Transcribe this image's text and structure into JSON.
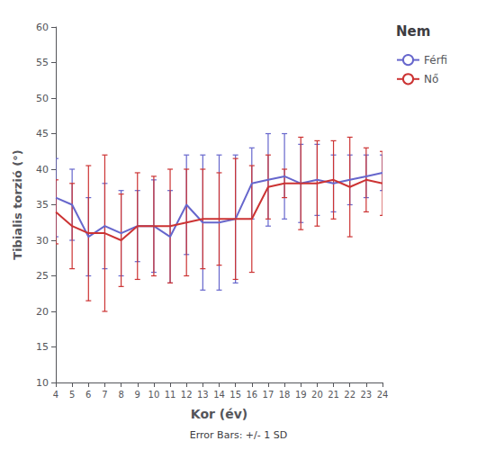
{
  "chart_data": {
    "type": "line",
    "xlabel": "Kor (év)",
    "ylabel": "Tibialis torzió (°)",
    "legend_title": "Nem",
    "annotations": [
      "Error Bars: +/- 1 SD"
    ],
    "x": [
      4,
      5,
      6,
      7,
      8,
      9,
      10,
      11,
      12,
      13,
      14,
      15,
      16,
      17,
      18,
      19,
      20,
      21,
      22,
      23,
      24
    ],
    "series": [
      {
        "name": "Férfi",
        "color": "#6666cc",
        "values": [
          36,
          35,
          30.5,
          32,
          31,
          32,
          32,
          30.5,
          35,
          32.5,
          32.5,
          33,
          38,
          38.5,
          39,
          38,
          38.5,
          38,
          38.5,
          39,
          39.5
        ],
        "error": [
          5.5,
          5,
          5.5,
          6,
          6,
          5,
          6.5,
          6.5,
          7,
          9.5,
          9.5,
          9,
          5,
          6.5,
          6,
          5.5,
          5,
          4,
          3.5,
          3,
          2.5
        ]
      },
      {
        "name": "Nő",
        "color": "#cc3333",
        "values": [
          34,
          32,
          31,
          31,
          30,
          32,
          32,
          32,
          32.5,
          33,
          33,
          33,
          33,
          37.5,
          38,
          38,
          38,
          38.5,
          37.5,
          38.5,
          38
        ],
        "error": [
          4.5,
          6,
          9.5,
          11,
          6.5,
          7.5,
          7,
          8,
          7.5,
          7,
          6.5,
          8.5,
          7.5,
          4.5,
          2,
          6.5,
          6,
          5.5,
          7,
          4.5,
          4.5
        ]
      }
    ],
    "xlim": [
      4,
      24
    ],
    "xticks": [
      4,
      5,
      6,
      7,
      8,
      9,
      10,
      11,
      12,
      13,
      14,
      15,
      16,
      17,
      18,
      19,
      20,
      21,
      22,
      23,
      24
    ],
    "ylim": [
      10,
      60
    ],
    "yticks": [
      10,
      15,
      20,
      25,
      30,
      35,
      40,
      45,
      50,
      55,
      60
    ],
    "grid": false,
    "legend": "right"
  }
}
